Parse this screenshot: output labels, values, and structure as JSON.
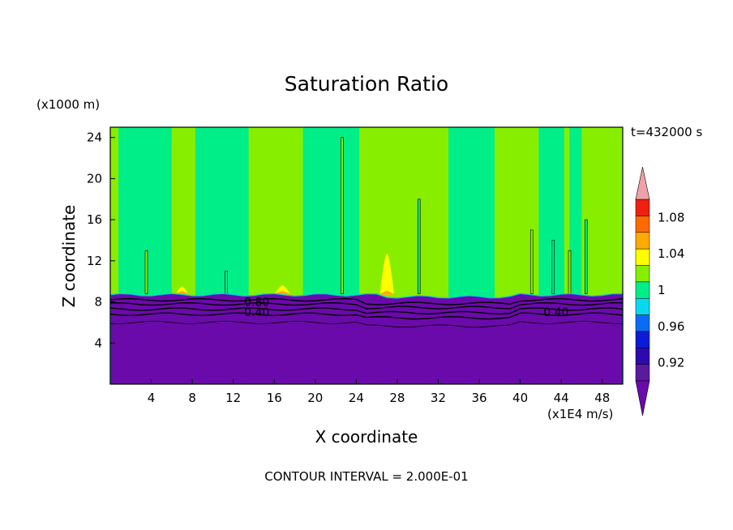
{
  "chart_data": {
    "type": "heatmap",
    "title": "Saturation Ratio",
    "xlabel": "X coordinate",
    "ylabel": "Z coordinate",
    "x_unit": "(x1E4 m/s)",
    "y_unit": "(x1000 m)",
    "time_label": "t=432000 s",
    "footer": "CONTOUR INTERVAL = 2.000E-01",
    "xlim": [
      0,
      50
    ],
    "ylim": [
      0,
      25
    ],
    "x_ticks": [
      4,
      8,
      12,
      16,
      20,
      24,
      28,
      32,
      36,
      40,
      44,
      48
    ],
    "y_ticks": [
      4,
      8,
      12,
      16,
      20,
      24
    ],
    "surface_height": 8.7,
    "contour_labels": [
      {
        "text": "0.80",
        "x": 14.3,
        "y": 8.0
      },
      {
        "text": "0.40",
        "x": 14.3,
        "y": 7.0
      },
      {
        "text": "0.40",
        "x": 43.5,
        "y": 7.0
      }
    ],
    "contour_lines_z": [
      8.2,
      7.8,
      7.3,
      6.8,
      6.0
    ],
    "colorbar": {
      "tick_labels": [
        "1.08",
        "1.04",
        "1",
        "0.96",
        "0.92"
      ],
      "tick_values": [
        1.08,
        1.04,
        1.0,
        0.96,
        0.92
      ],
      "levels": [
        0.9,
        0.92,
        0.94,
        0.96,
        0.98,
        1.0,
        1.02,
        1.04,
        1.06,
        1.08,
        1.1
      ],
      "colors": [
        "#5a1aa0",
        "#2d0ab0",
        "#0b1bd6",
        "#0a6cf5",
        "#0ad8f0",
        "#00ee88",
        "#88ee00",
        "#ffff00",
        "#ffaa00",
        "#ff6a00",
        "#ee2010"
      ],
      "over_color": "#f0a0a8",
      "under_color": "#6a0aaa"
    },
    "field_colors": {
      "cloud_low": "#00ee88",
      "cloud_high": "#88ee00",
      "below": "#6a0aaa",
      "peak_yellow": "#ffff00",
      "peak_orange": "#ffaa00"
    },
    "high_bands": [
      [
        0.0,
        0.8
      ],
      [
        6.0,
        8.3
      ],
      [
        13.5,
        18.8
      ],
      [
        24.3,
        33.0
      ],
      [
        37.5,
        41.8
      ],
      [
        44.3,
        44.8
      ],
      [
        46.0,
        50.0
      ]
    ],
    "peaks": [
      {
        "x": 27.0,
        "height": 12.7,
        "halfwidth": 0.7
      },
      {
        "x": 7.0,
        "height": 9.5,
        "halfwidth": 0.6
      },
      {
        "x": 16.8,
        "height": 9.6,
        "halfwidth": 0.8
      }
    ]
  }
}
